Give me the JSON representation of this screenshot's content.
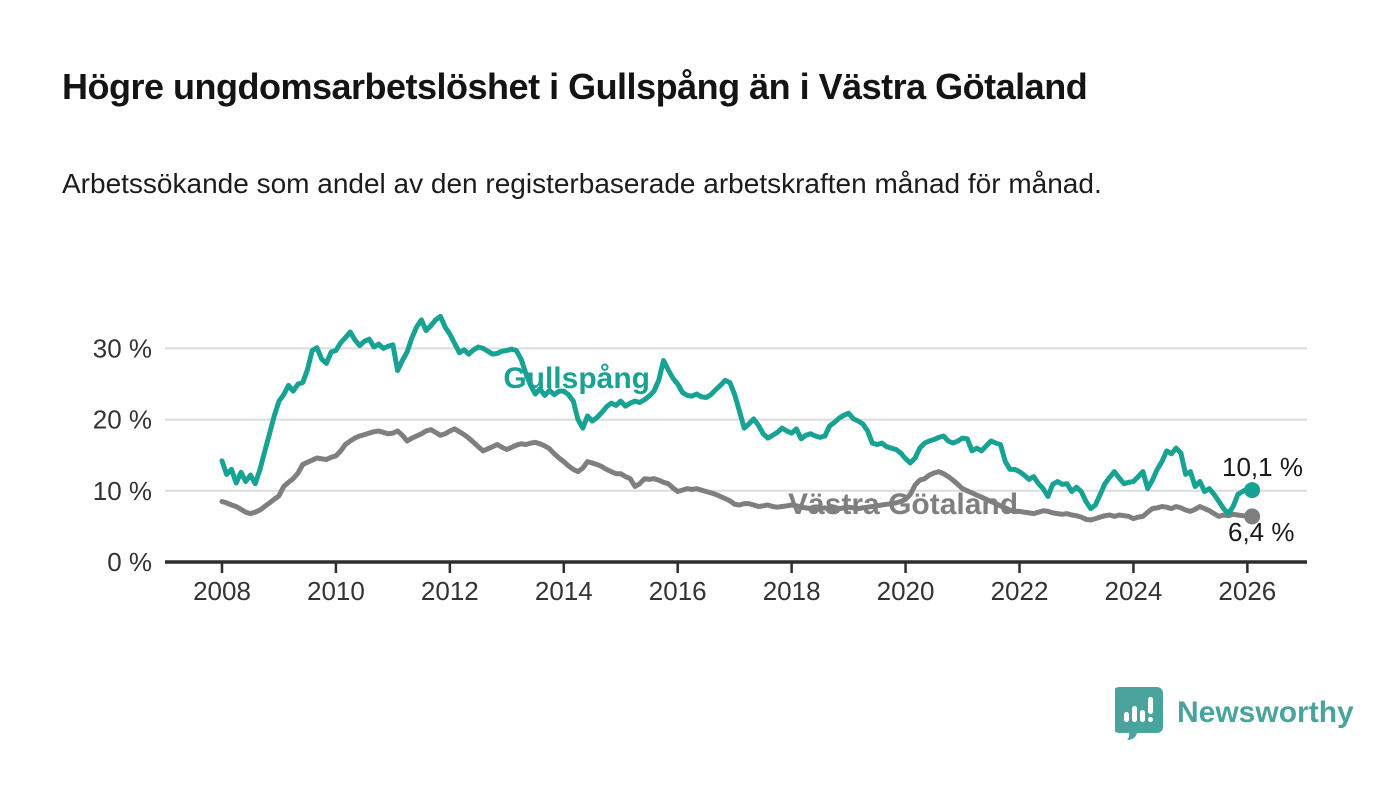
{
  "title": "Högre ungdomsarbetslöshet i Gullspång än i Västra Götaland",
  "subtitle": "Arbetssökande som andel av den registerbaserade arbetskraften månad för månad.",
  "footer": {
    "brand": "Newsworthy"
  },
  "colors": {
    "gullspang": "#17a294",
    "vastra_gotaland": "#7f7f7f",
    "brand_teal": "#4aa39c",
    "end_label_text": "#1a1a1a"
  },
  "chart_data": {
    "type": "line",
    "title": "Högre ungdomsarbetslöshet i Gullspång än i Västra Götaland",
    "subtitle": "Arbetssökande som andel av den registerbaserade arbetskraften månad för månad.",
    "x_start": "2008-01",
    "x_freq": "monthly",
    "ylabel": "",
    "xlabel": "",
    "ylim": [
      0,
      35
    ],
    "grid": true,
    "y_ticks": [
      {
        "value": 0,
        "label": "0 %"
      },
      {
        "value": 10,
        "label": "10 %"
      },
      {
        "value": 20,
        "label": "20 %"
      },
      {
        "value": 30,
        "label": "30 %"
      }
    ],
    "x_ticks": [
      {
        "year": 2008,
        "label": "2008"
      },
      {
        "year": 2010,
        "label": "2010"
      },
      {
        "year": 2012,
        "label": "2012"
      },
      {
        "year": 2014,
        "label": "2014"
      },
      {
        "year": 2016,
        "label": "2016"
      },
      {
        "year": 2018,
        "label": "2018"
      },
      {
        "year": 2020,
        "label": "2020"
      },
      {
        "year": 2022,
        "label": "2022"
      },
      {
        "year": 2024,
        "label": "2024"
      },
      {
        "year": 2026,
        "label": "2026"
      }
    ],
    "series": [
      {
        "name": "Gullspång",
        "color": "#17a294",
        "end_label": "10,1 %",
        "last_value": 10.1,
        "values": [
          14.2,
          12.3,
          13.0,
          11.1,
          12.6,
          11.3,
          12.2,
          11.0,
          13.0,
          15.5,
          18.0,
          20.5,
          22.6,
          23.5,
          24.8,
          24.0,
          25.0,
          25.2,
          27.0,
          29.7,
          30.1,
          28.5,
          27.9,
          29.5,
          29.7,
          30.8,
          31.5,
          32.3,
          31.2,
          30.4,
          31.0,
          31.3,
          30.2,
          30.6,
          30.0,
          30.3,
          30.5,
          26.9,
          28.3,
          29.5,
          31.5,
          33.0,
          34.0,
          32.5,
          33.2,
          34.0,
          34.5,
          33.0,
          32.0,
          30.7,
          29.4,
          29.8,
          29.2,
          29.8,
          30.2,
          30.0,
          29.6,
          29.2,
          29.3,
          29.6,
          29.7,
          29.9,
          29.7,
          28.5,
          26.5,
          24.8,
          23.6,
          24.3,
          23.4,
          24.1,
          23.5,
          24.0,
          24.0,
          23.5,
          22.6,
          20.0,
          18.8,
          20.5,
          19.8,
          20.3,
          21.0,
          21.8,
          22.3,
          22.0,
          22.6,
          21.9,
          22.3,
          22.6,
          22.4,
          22.8,
          23.3,
          24.0,
          25.5,
          28.3,
          27.0,
          25.8,
          25.0,
          23.8,
          23.4,
          23.3,
          23.6,
          23.2,
          23.1,
          23.5,
          24.2,
          24.8,
          25.5,
          25.2,
          23.5,
          21.2,
          18.8,
          19.4,
          20.1,
          19.2,
          18.0,
          17.4,
          17.8,
          18.2,
          18.8,
          18.4,
          18.1,
          18.7,
          17.3,
          17.8,
          18.0,
          17.7,
          17.5,
          17.7,
          19.1,
          19.6,
          20.2,
          20.6,
          20.9,
          20.1,
          19.8,
          19.4,
          18.4,
          16.7,
          16.5,
          16.7,
          16.2,
          16.0,
          15.8,
          15.3,
          14.5,
          13.9,
          14.6,
          16.0,
          16.7,
          17.0,
          17.2,
          17.5,
          17.7,
          17.0,
          16.7,
          17.0,
          17.4,
          17.3,
          15.6,
          16.0,
          15.6,
          16.3,
          17.0,
          16.7,
          16.5,
          14.1,
          13.0,
          13.0,
          12.7,
          12.2,
          11.6,
          12.0,
          11.0,
          10.3,
          9.2,
          10.9,
          11.3,
          10.9,
          11.0,
          9.9,
          10.5,
          9.9,
          8.5,
          7.5,
          8.0,
          9.5,
          11.0,
          11.9,
          12.7,
          11.8,
          11.0,
          11.2,
          11.3,
          12.0,
          12.7,
          10.3,
          11.5,
          13.0,
          14.1,
          15.6,
          15.2,
          16.0,
          15.3,
          12.3,
          12.7,
          10.6,
          11.3,
          9.9,
          10.3,
          9.5,
          8.5,
          7.5,
          6.8,
          7.8,
          9.5,
          9.9,
          10.3,
          10.1
        ]
      },
      {
        "name": "Västra Götaland",
        "color": "#7f7f7f",
        "end_label": "6,4 %",
        "last_value": 6.4,
        "values": [
          8.5,
          8.3,
          8.0,
          7.8,
          7.4,
          7.0,
          6.8,
          7.0,
          7.3,
          7.8,
          8.3,
          8.8,
          9.3,
          10.6,
          11.2,
          11.7,
          12.5,
          13.7,
          14.0,
          14.3,
          14.6,
          14.5,
          14.4,
          14.7,
          14.9,
          15.6,
          16.5,
          17.0,
          17.4,
          17.7,
          17.9,
          18.1,
          18.3,
          18.4,
          18.2,
          18.0,
          18.1,
          18.4,
          17.8,
          17.0,
          17.4,
          17.7,
          18.0,
          18.4,
          18.6,
          18.2,
          17.8,
          18.0,
          18.4,
          18.7,
          18.3,
          17.9,
          17.4,
          16.8,
          16.2,
          15.6,
          15.9,
          16.2,
          16.5,
          16.1,
          15.8,
          16.1,
          16.4,
          16.6,
          16.5,
          16.7,
          16.8,
          16.6,
          16.3,
          15.9,
          15.2,
          14.6,
          14.1,
          13.5,
          13.0,
          12.7,
          13.2,
          14.1,
          13.9,
          13.7,
          13.4,
          13.0,
          12.7,
          12.4,
          12.4,
          12.0,
          11.7,
          10.6,
          11.0,
          11.7,
          11.6,
          11.7,
          11.5,
          11.2,
          11.0,
          10.4,
          9.9,
          10.1,
          10.3,
          10.2,
          10.3,
          10.1,
          9.9,
          9.7,
          9.5,
          9.2,
          8.9,
          8.6,
          8.1,
          8.0,
          8.2,
          8.2,
          8.0,
          7.8,
          7.9,
          8.0,
          7.8,
          7.7,
          7.8,
          7.9,
          8.0,
          7.9,
          7.7,
          7.6,
          7.5,
          7.4,
          7.5,
          7.6,
          7.5,
          7.4,
          7.5,
          7.6,
          7.7,
          7.6,
          7.5,
          7.6,
          7.7,
          7.8,
          7.9,
          8.0,
          8.1,
          8.2,
          8.3,
          8.5,
          8.8,
          9.5,
          10.8,
          11.5,
          11.7,
          12.2,
          12.5,
          12.7,
          12.4,
          12.0,
          11.5,
          10.9,
          10.3,
          10.0,
          9.7,
          9.4,
          9.1,
          8.8,
          8.5,
          8.2,
          7.9,
          7.6,
          7.3,
          7.1,
          7.1,
          7.0,
          6.9,
          6.8,
          7.0,
          7.2,
          7.1,
          6.9,
          6.8,
          6.7,
          6.8,
          6.6,
          6.5,
          6.3,
          6.0,
          5.9,
          6.1,
          6.3,
          6.5,
          6.6,
          6.4,
          6.6,
          6.5,
          6.4,
          6.1,
          6.3,
          6.4,
          7.0,
          7.5,
          7.6,
          7.8,
          7.7,
          7.5,
          7.8,
          7.6,
          7.3,
          7.1,
          7.4,
          7.8,
          7.5,
          7.2,
          6.8,
          6.4,
          6.6,
          6.5,
          6.7,
          6.6,
          6.5,
          6.5,
          6.4
        ]
      }
    ],
    "legend_position": "inline-labels"
  }
}
